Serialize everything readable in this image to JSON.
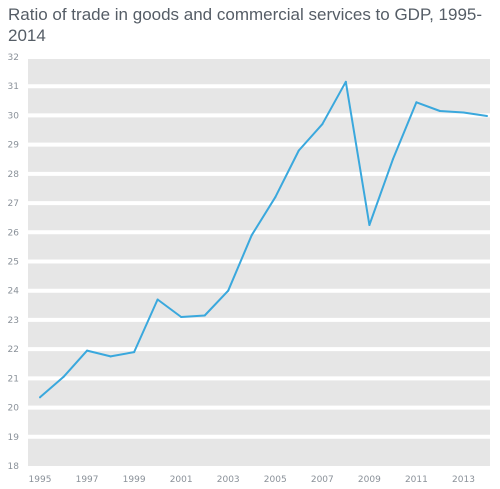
{
  "title": "Ratio of trade in goods and commercial services to GDP, 1995-2014",
  "chart_data": {
    "type": "line",
    "title": "Ratio of trade in goods and commercial services to GDP, 1995-2014",
    "xlabel": "",
    "ylabel": "",
    "x": [
      1995,
      1996,
      1997,
      1998,
      1999,
      2000,
      2001,
      2002,
      2003,
      2004,
      2005,
      2006,
      2007,
      2008,
      2009,
      2010,
      2011,
      2012,
      2013,
      2014
    ],
    "series": [
      {
        "values": [
          20.35,
          21.05,
          21.95,
          21.75,
          21.9,
          23.7,
          23.1,
          23.15,
          24.0,
          25.9,
          27.2,
          28.8,
          29.7,
          31.15,
          26.25,
          28.5,
          30.45,
          30.15,
          30.1,
          29.98
        ]
      }
    ],
    "x_tick_labels": [
      "1995",
      "1997",
      "1999",
      "2001",
      "2003",
      "2005",
      "2007",
      "2009",
      "2011",
      "2013"
    ],
    "y_tick_labels": [
      "18",
      "19",
      "20",
      "21",
      "22",
      "23",
      "24",
      "25",
      "26",
      "27",
      "28",
      "29",
      "30",
      "31",
      "32"
    ],
    "xlim": [
      1995,
      2014
    ],
    "ylim": [
      18,
      32
    ],
    "grid": "horizontal white bands on grey background",
    "line_color": "#3aa8dd",
    "background_color": "#e6e6e6"
  }
}
